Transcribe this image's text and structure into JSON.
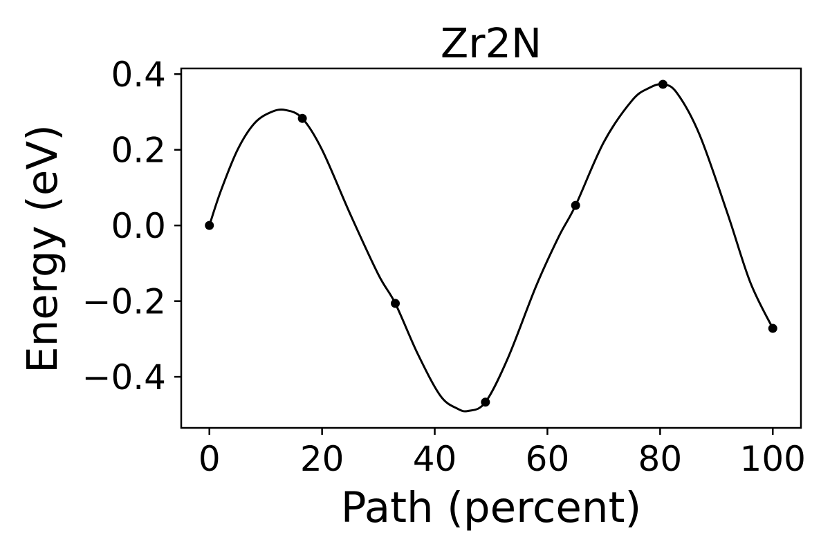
{
  "chart_data": {
    "type": "line",
    "title": "Zr2N",
    "xlabel": "Path (percent)",
    "ylabel": "Energy (eV)",
    "xlim": [
      -5,
      105
    ],
    "ylim": [
      -0.535,
      0.415
    ],
    "xticks": [
      0,
      20,
      40,
      60,
      80,
      100
    ],
    "xtick_labels": [
      "0",
      "20",
      "40",
      "60",
      "80",
      "100"
    ],
    "yticks": [
      -0.4,
      -0.2,
      0.0,
      0.2,
      0.4
    ],
    "ytick_labels": [
      "−0.4",
      "−0.2",
      "0.0",
      "0.2",
      "0.4"
    ],
    "grid": false,
    "series": [
      {
        "marker": "circle",
        "color": "#000000",
        "points": {
          "x": [
            0,
            16.5,
            33,
            49,
            65,
            80.5,
            100
          ],
          "y": [
            0.0,
            0.283,
            -0.206,
            -0.467,
            0.053,
            0.373,
            -0.272
          ]
        },
        "curve": {
          "x": [
            0,
            2,
            5,
            8,
            11,
            13.5,
            16.5,
            20,
            25,
            30,
            33,
            37,
            41,
            44,
            46,
            49,
            53,
            58,
            62,
            65,
            70,
            75,
            78,
            80.5,
            83,
            87,
            92,
            96,
            100
          ],
          "y": [
            0.0,
            0.09,
            0.2,
            0.27,
            0.3,
            0.305,
            0.283,
            0.2,
            0.03,
            -0.13,
            -0.206,
            -0.34,
            -0.45,
            -0.484,
            -0.49,
            -0.467,
            -0.35,
            -0.16,
            -0.03,
            0.053,
            0.22,
            0.33,
            0.363,
            0.373,
            0.35,
            0.24,
            0.03,
            -0.15,
            -0.272
          ]
        }
      }
    ]
  }
}
